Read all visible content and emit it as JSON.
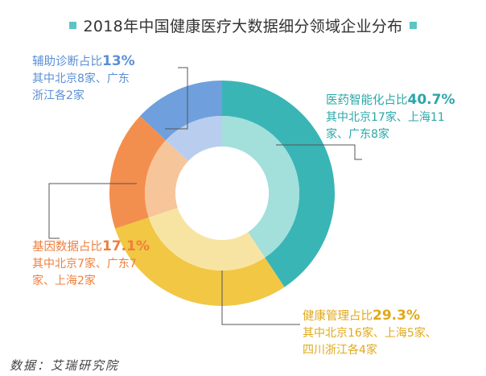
{
  "title": "2018年中国健康医疗大数据细分领域企业分布",
  "source": "数据：艾瑞研究院",
  "colors": {
    "title_marker": "#5bc5c3",
    "teal_outer": "#3ab5b6",
    "teal_inner": "#a3dfdb",
    "yellow_outer": "#f1c744",
    "yellow_inner": "#f8e4a2",
    "orange_outer": "#f38f4e",
    "orange_inner": "#f7c59a",
    "blue_outer": "#6fa0dd",
    "blue_inner": "#b9cdef",
    "leader_line": "#555555"
  },
  "chart_data": {
    "type": "pie",
    "subtype": "donut",
    "title": "2018年中国健康医疗大数据细分领域企业分布",
    "start_angle_deg": 0,
    "direction": "clockwise",
    "slices": [
      {
        "key": "medical_ai",
        "name": "医药智能化占比",
        "value": 40.7,
        "value_label": "40.7%",
        "detail_lines": [
          "其中北京17家、上海11",
          "家、广东8家"
        ],
        "outer_color": "#3ab5b6",
        "inner_color": "#a3dfdb",
        "text_color": "#2aa7a8"
      },
      {
        "key": "health_mgmt",
        "name": "健康管理占比",
        "value": 29.3,
        "value_label": "29.3%",
        "detail_lines": [
          "其中北京16家、上海5家、",
          "四川浙江各4家"
        ],
        "outer_color": "#f1c744",
        "inner_color": "#f8e4a2",
        "text_color": "#e0a91a"
      },
      {
        "key": "genomics",
        "name": "基因数据占比",
        "value": 17.1,
        "value_label": "17.1%",
        "detail_lines": [
          "其中北京7家、广东7",
          "家、上海2家"
        ],
        "outer_color": "#f38f4e",
        "inner_color": "#f7c59a",
        "text_color": "#ef7f3c"
      },
      {
        "key": "diagnosis",
        "name": "辅助诊断占比",
        "value": 13,
        "value_label": "13%",
        "detail_lines": [
          "其中北京8家、广东",
          "浙江各2家"
        ],
        "outer_color": "#6fa0dd",
        "inner_color": "#b9cdef",
        "text_color": "#5b8fd6"
      }
    ]
  }
}
